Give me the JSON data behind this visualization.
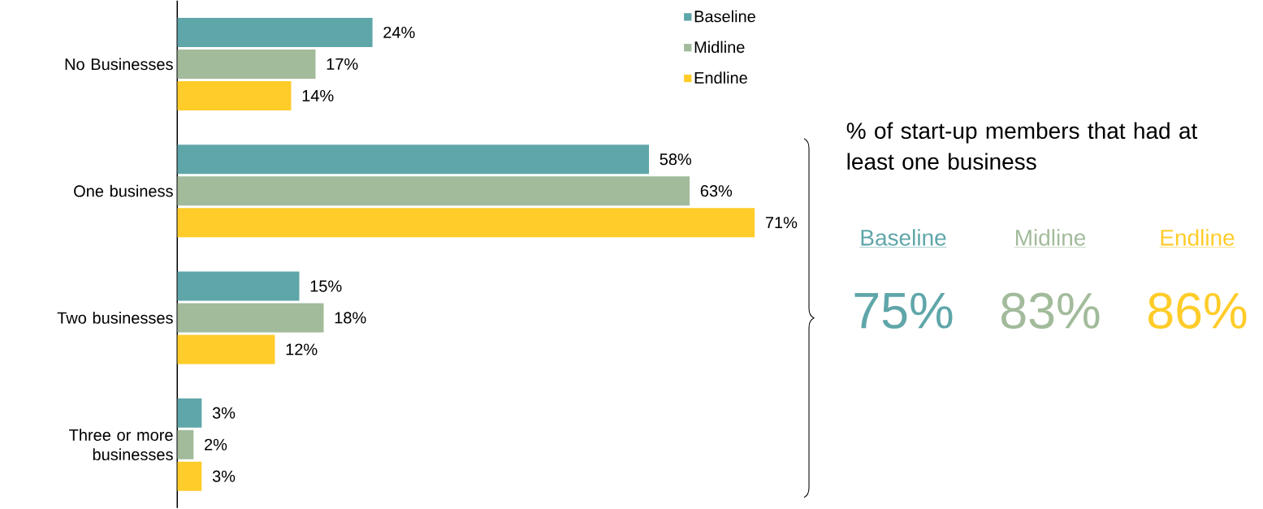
{
  "chart_data": [
    {
      "type": "bar",
      "orientation": "horizontal",
      "categories": [
        "No Businesses",
        "One business",
        "Two businesses",
        "Three or more businesses"
      ],
      "legend": "top right",
      "series": [
        {
          "name": "Baseline",
          "color": "#5fa6a9",
          "values": [
            24,
            58,
            15,
            3
          ],
          "value_labels": [
            "24%",
            "58%",
            "15%",
            "3%"
          ]
        },
        {
          "name": "Midline",
          "color": "#a2bb9b",
          "values": [
            17,
            63,
            18,
            2
          ],
          "value_labels": [
            "17%",
            "63%",
            "18%",
            "2%"
          ]
        },
        {
          "name": "Endline",
          "color": "#ffcc29",
          "values": [
            14,
            71,
            12,
            3
          ],
          "value_labels": [
            "14%",
            "71%",
            "12%",
            "3%"
          ]
        }
      ]
    },
    {
      "type": "other",
      "title": "% of start-up members that had at least one business",
      "categories": [
        "Baseline",
        "Midline",
        "Endline"
      ],
      "value_labels": [
        "75%",
        "83%",
        "86%"
      ],
      "colors": [
        "#5fa6a9",
        "#a2bb9b",
        "#ffcc29"
      ]
    }
  ]
}
